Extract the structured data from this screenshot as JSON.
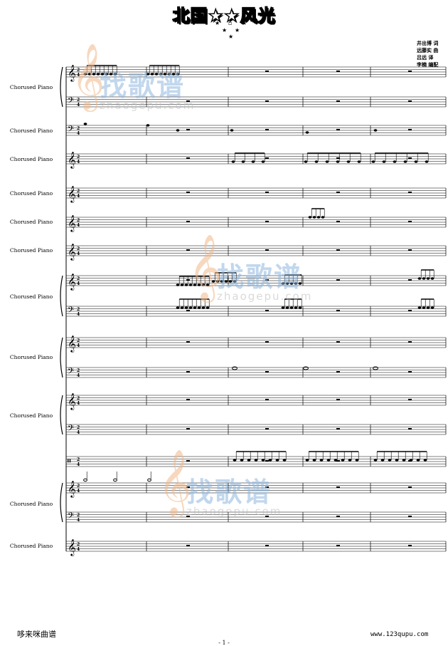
{
  "header": {
    "title": "北国★★风光",
    "credits": [
      "井出博 词",
      "远藤实 曲",
      "吕远 译",
      "李楠 编配"
    ]
  },
  "instrument_label": "Chorused Piano",
  "watermark": {
    "cn": "找歌谱",
    "en": "zhaogepu.com"
  },
  "footer": {
    "left": "哆来咪曲谱",
    "right": "www.123qupu.com",
    "page": "- 1 -"
  }
}
